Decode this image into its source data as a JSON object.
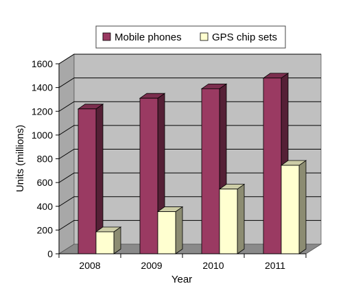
{
  "chart_data": {
    "type": "bar",
    "style": "3d-clustered",
    "categories": [
      "2008",
      "2009",
      "2010",
      "2011"
    ],
    "series": [
      {
        "name": "Mobile phones",
        "values": [
          1220,
          1310,
          1390,
          1480
        ],
        "color": "#9a3a62"
      },
      {
        "name": "GPS chip sets",
        "values": [
          185,
          355,
          545,
          745
        ],
        "color": "#ffffd0"
      }
    ],
    "xlabel": "Year",
    "ylabel": "Units (millions)",
    "ylim": [
      0,
      1600
    ],
    "yticks": [
      0,
      200,
      400,
      600,
      800,
      1000,
      1200,
      1400,
      1600
    ],
    "grid": true,
    "legend_position": "top",
    "colors": {
      "wall": "#c0c0c0",
      "wall_side": "#a8a8a8",
      "floor": "#8a8a8a",
      "grid": "#000000"
    }
  }
}
